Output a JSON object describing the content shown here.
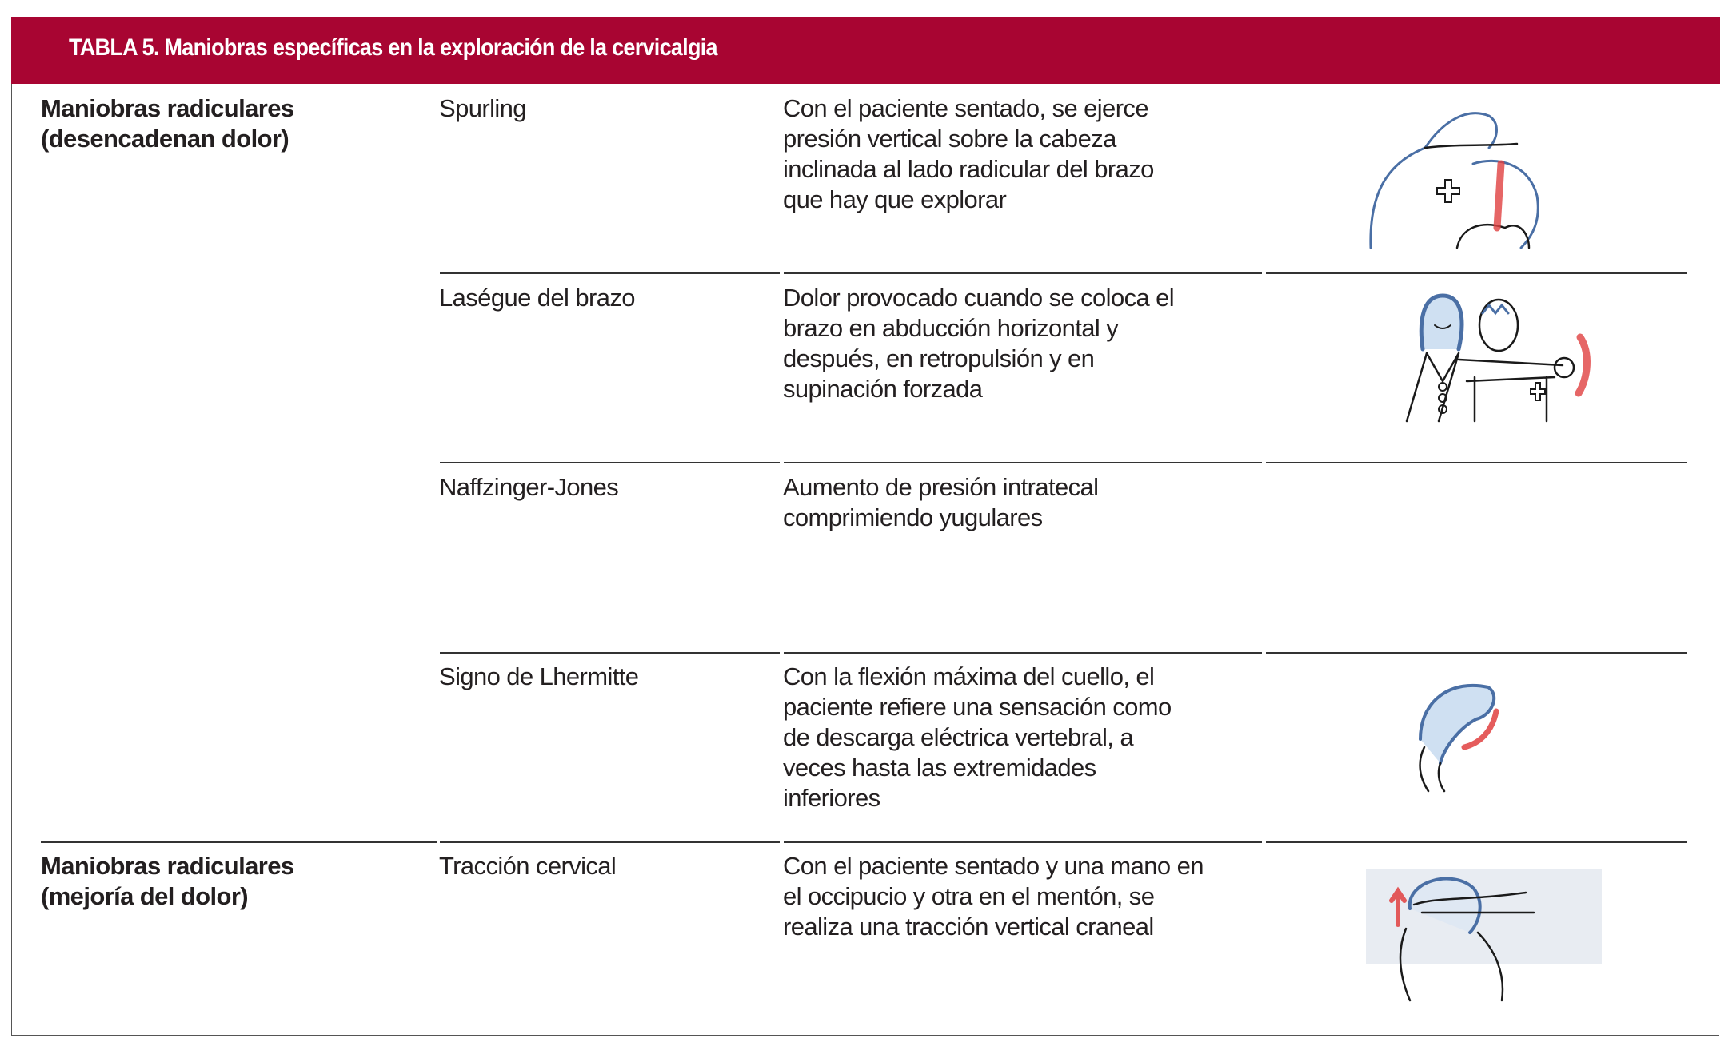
{
  "table": {
    "title": "TABLA 5. Maniobras específicas en la exploración de la cervicalgia",
    "accent_color": "#a80532",
    "groups": [
      {
        "label_lines": [
          "Maniobras radiculares",
          "(desencadenan dolor)"
        ]
      },
      {
        "label_lines": [
          "Maniobras radiculares",
          "(mejoría del dolor)"
        ]
      }
    ],
    "rows": [
      {
        "maneuver": "Spurling",
        "description_lines": [
          "Con el paciente sentado, se ejerce",
          "presión vertical sobre la cabeza",
          "inclinada al lado radicular del brazo",
          "que hay que explorar"
        ],
        "illustration": "spurling-sketch"
      },
      {
        "maneuver": "Laségue del brazo",
        "description_lines": [
          "Dolor provocado cuando se coloca el",
          "brazo en abducción horizontal y",
          "después, en retropulsión y en",
          "supinación forzada"
        ],
        "illustration": "lasegue-sketch"
      },
      {
        "maneuver": "Naffzinger-Jones",
        "description_lines": [
          "Aumento de presión intratecal",
          "comprimiendo yugulares"
        ],
        "illustration": ""
      },
      {
        "maneuver": "Signo de Lhermitte",
        "description_lines": [
          "Con la flexión máxima del cuello, el",
          "paciente refiere una sensación como",
          "de descarga eléctrica vertebral, a",
          "veces hasta las extremidades",
          "inferiores"
        ],
        "illustration": "lhermitte-sketch"
      },
      {
        "maneuver": "Tracción cervical",
        "description_lines": [
          "Con el paciente sentado y una mano en",
          "el occipucio y otra en el mentón, se",
          "realiza una tracción vertical craneal"
        ],
        "illustration": "traccion-sketch"
      }
    ]
  }
}
